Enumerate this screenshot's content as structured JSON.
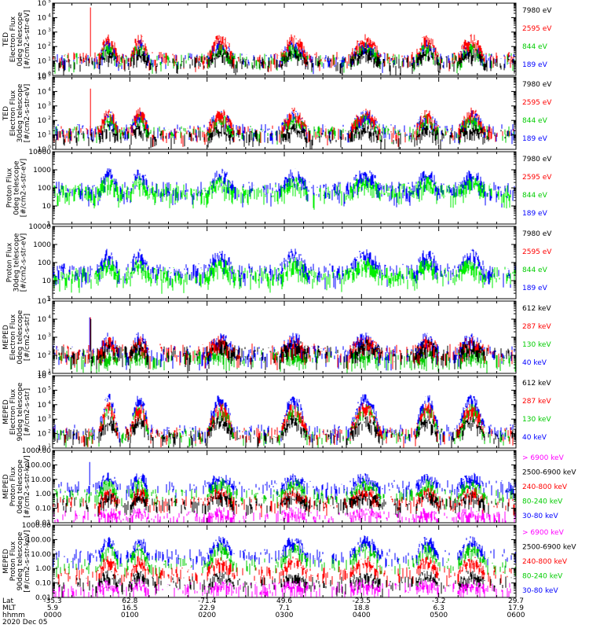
{
  "chart_data": {
    "type": "line",
    "date_label": "2020 Dec 05",
    "x_axis": {
      "rows": [
        {
          "label": "Lat",
          "values": [
            "-35.3",
            "62.8",
            "-71.4",
            "49.6",
            "-23.5",
            "-3.2",
            "29.7"
          ]
        },
        {
          "label": "MLT",
          "values": [
            "5.9",
            "16.5",
            "22.9",
            "7.1",
            "18.8",
            "6.3",
            "17.9"
          ]
        },
        {
          "label": "hhmm",
          "values": [
            "0000",
            "0100",
            "0200",
            "0300",
            "0400",
            "0500",
            "0600"
          ]
        }
      ],
      "hours_range": [
        0,
        6
      ]
    },
    "panels": [
      {
        "id": "ted-electron-0deg",
        "ylabel_lines": [
          "TED",
          "Electron Flux",
          "0deg telescope",
          "[#/cm2-s-str-eV]"
        ],
        "y_log_range": [
          0,
          5
        ],
        "yticks": [
          {
            "exp": 0,
            "label": "10",
            "sup": "0"
          },
          {
            "exp": 1,
            "label": "10",
            "sup": "1"
          },
          {
            "exp": 2,
            "label": "10",
            "sup": "2"
          },
          {
            "exp": 3,
            "label": "10",
            "sup": "3"
          },
          {
            "exp": 4,
            "label": "10",
            "sup": "4"
          },
          {
            "exp": 5,
            "label": "10",
            "sup": "5"
          }
        ],
        "legend": [
          {
            "text": "7980 eV",
            "color": "#000000"
          },
          {
            "text": "2595 eV",
            "color": "#ff0000"
          },
          {
            "text": "844 eV",
            "color": "#00cc00"
          },
          {
            "text": "189 eV",
            "color": "#0000ff"
          }
        ],
        "series": [
          {
            "name": "189 eV",
            "color": "#0000ff",
            "base": 1.2,
            "peak": 2.2,
            "spike": null
          },
          {
            "name": "844 eV",
            "color": "#00cc00",
            "base": 1.2,
            "peak": 2.0,
            "spike": null
          },
          {
            "name": "2595 eV",
            "color": "#ff0000",
            "base": 1.3,
            "peak": 2.6,
            "spike": 4.7
          },
          {
            "name": "7980 eV",
            "color": "#000000",
            "base": 1.0,
            "peak": 1.6,
            "spike": null
          }
        ]
      },
      {
        "id": "ted-electron-30deg",
        "ylabel_lines": [
          "TED",
          "Electron Flux",
          "30deg telescope",
          "[#/cm2-s-str-eV]"
        ],
        "y_log_range": [
          0,
          5
        ],
        "yticks": [
          {
            "exp": 0,
            "label": "10",
            "sup": "0"
          },
          {
            "exp": 1,
            "label": "10",
            "sup": "1"
          },
          {
            "exp": 2,
            "label": "10",
            "sup": "2"
          },
          {
            "exp": 3,
            "label": "10",
            "sup": "3"
          },
          {
            "exp": 4,
            "label": "10",
            "sup": "4"
          },
          {
            "exp": 5,
            "label": "10",
            "sup": "5"
          }
        ],
        "legend": [
          {
            "text": "7980 eV",
            "color": "#000000"
          },
          {
            "text": "2595 eV",
            "color": "#ff0000"
          },
          {
            "text": "844 eV",
            "color": "#00cc00"
          },
          {
            "text": "189 eV",
            "color": "#0000ff"
          }
        ],
        "series": [
          {
            "name": "189 eV",
            "color": "#0000ff",
            "base": 1.4,
            "peak": 2.4,
            "spike": null
          },
          {
            "name": "844 eV",
            "color": "#00cc00",
            "base": 1.3,
            "peak": 2.2,
            "spike": null
          },
          {
            "name": "2595 eV",
            "color": "#ff0000",
            "base": 1.3,
            "peak": 2.6,
            "spike": 4.2
          },
          {
            "name": "7980 eV",
            "color": "#000000",
            "base": 1.0,
            "peak": 1.5,
            "spike": null
          }
        ]
      },
      {
        "id": "proton-0deg",
        "ylabel_lines": [
          "Proton Flux",
          "0deg telescope",
          "[#/cm2-s-str-eV]"
        ],
        "y_log_range": [
          0,
          4
        ],
        "yticks": [
          {
            "exp": 0,
            "label": "1",
            "sup": ""
          },
          {
            "exp": 1,
            "label": "10",
            "sup": ""
          },
          {
            "exp": 2,
            "label": "100",
            "sup": ""
          },
          {
            "exp": 3,
            "label": "1000",
            "sup": ""
          },
          {
            "exp": 4,
            "label": "10000",
            "sup": ""
          }
        ],
        "legend": [
          {
            "text": "7980 eV",
            "color": "#000000"
          },
          {
            "text": "2595 eV",
            "color": "#ff0000"
          },
          {
            "text": "844 eV",
            "color": "#00cc00"
          },
          {
            "text": "189 eV",
            "color": "#0000ff"
          }
        ],
        "series": [
          {
            "name": "189 eV",
            "color": "#0000ff",
            "base": 2.0,
            "peak": 2.8,
            "spike": null
          },
          {
            "name": "844 eV",
            "color": "#00ee00",
            "base": 1.9,
            "peak": 2.4,
            "spike": null
          }
        ]
      },
      {
        "id": "proton-30deg",
        "ylabel_lines": [
          "Proton Flux",
          "30deg telescope",
          "[#/cm2-s-str-eV]"
        ],
        "y_log_range": [
          0,
          4
        ],
        "yticks": [
          {
            "exp": 0,
            "label": "1",
            "sup": ""
          },
          {
            "exp": 1,
            "label": "10",
            "sup": ""
          },
          {
            "exp": 2,
            "label": "100",
            "sup": ""
          },
          {
            "exp": 3,
            "label": "1000",
            "sup": ""
          },
          {
            "exp": 4,
            "label": "10000",
            "sup": ""
          }
        ],
        "legend": [
          {
            "text": "7980 eV",
            "color": "#000000"
          },
          {
            "text": "2595 eV",
            "color": "#ff0000"
          },
          {
            "text": "844 eV",
            "color": "#00cc00"
          },
          {
            "text": "189 eV",
            "color": "#0000ff"
          }
        ],
        "series": [
          {
            "name": "189 eV",
            "color": "#0000ff",
            "base": 1.6,
            "peak": 2.5,
            "spike": null
          },
          {
            "name": "844 eV",
            "color": "#00ee00",
            "base": 1.4,
            "peak": 2.0,
            "spike": null
          }
        ]
      },
      {
        "id": "meped-electron-0deg",
        "ylabel_lines": [
          "MEPED",
          "Electron Flux",
          "0deg telescope",
          "[#/cm2-s-str]"
        ],
        "y_log_range": [
          1,
          5
        ],
        "yticks": [
          {
            "exp": 1,
            "label": "10",
            "sup": "1"
          },
          {
            "exp": 2,
            "label": "10",
            "sup": "2"
          },
          {
            "exp": 3,
            "label": "10",
            "sup": "3"
          },
          {
            "exp": 4,
            "label": "10",
            "sup": "4"
          },
          {
            "exp": 5,
            "label": "10",
            "sup": "5"
          }
        ],
        "legend": [
          {
            "text": "612 keV",
            "color": "#000000"
          },
          {
            "text": "287 keV",
            "color": "#ff0000"
          },
          {
            "text": "130 keV",
            "color": "#00cc00"
          },
          {
            "text": "40 keV",
            "color": "#0000ff"
          }
        ],
        "series": [
          {
            "name": "40 keV",
            "color": "#0000ff",
            "base": 2.2,
            "peak": 3.0,
            "spike": 4.1
          },
          {
            "name": "130 keV",
            "color": "#00cc00",
            "base": 2.0,
            "peak": 2.1,
            "spike": null
          },
          {
            "name": "287 keV",
            "color": "#ff0000",
            "base": 2.3,
            "peak": 2.8,
            "spike": 4.1
          },
          {
            "name": "612 keV",
            "color": "#000000",
            "base": 2.2,
            "peak": 2.6,
            "spike": 4.0
          }
        ]
      },
      {
        "id": "meped-electron-90deg",
        "ylabel_lines": [
          "MEPED",
          "Electron Flux",
          "90deg telescope",
          "[#/cm2-s-str]"
        ],
        "y_log_range": [
          1,
          6
        ],
        "yticks": [
          {
            "exp": 1,
            "label": "10",
            "sup": "1"
          },
          {
            "exp": 2,
            "label": "10",
            "sup": "2"
          },
          {
            "exp": 3,
            "label": "10",
            "sup": "3"
          },
          {
            "exp": 4,
            "label": "10",
            "sup": "4"
          },
          {
            "exp": 5,
            "label": "10",
            "sup": "5"
          },
          {
            "exp": 6,
            "label": "10",
            "sup": "6"
          }
        ],
        "legend": [
          {
            "text": "612 keV",
            "color": "#000000"
          },
          {
            "text": "287 keV",
            "color": "#ff0000"
          },
          {
            "text": "130 keV",
            "color": "#00cc00"
          },
          {
            "text": "40 keV",
            "color": "#0000ff"
          }
        ],
        "series": [
          {
            "name": "40 keV",
            "color": "#0000ff",
            "base": 2.3,
            "peak": 4.5,
            "spike": null
          },
          {
            "name": "130 keV",
            "color": "#00cc00",
            "base": 2.0,
            "peak": 3.8,
            "spike": null
          },
          {
            "name": "287 keV",
            "color": "#ff0000",
            "base": 2.1,
            "peak": 3.9,
            "spike": null
          },
          {
            "name": "612 keV",
            "color": "#000000",
            "base": 2.0,
            "peak": 3.0,
            "spike": null
          }
        ]
      },
      {
        "id": "meped-proton-0deg",
        "ylabel_lines": [
          "MEPED",
          "Proton Flux",
          "0deg telescope",
          "[#/cm2-s-str-keV]"
        ],
        "y_log_range": [
          -2,
          3
        ],
        "yticks": [
          {
            "exp": -2,
            "label": "0.01",
            "sup": ""
          },
          {
            "exp": -1,
            "label": "0.10",
            "sup": ""
          },
          {
            "exp": 0,
            "label": "1.00",
            "sup": ""
          },
          {
            "exp": 1,
            "label": "10.00",
            "sup": ""
          },
          {
            "exp": 2,
            "label": "100.00",
            "sup": ""
          },
          {
            "exp": 3,
            "label": "1000.00",
            "sup": ""
          }
        ],
        "legend": [
          {
            "text": "> 6900 keV",
            "color": "#ff00ff"
          },
          {
            "text": "2500-6900 keV",
            "color": "#000000"
          },
          {
            "text": "240-800 keV",
            "color": "#ff0000"
          },
          {
            "text": "80-240 keV",
            "color": "#00cc00"
          },
          {
            "text": "30-80 keV",
            "color": "#0000ff"
          }
        ],
        "series": [
          {
            "name": "30-80 keV",
            "color": "#0000ff",
            "base": 0.6,
            "peak": 1.2,
            "spike": 2.2
          },
          {
            "name": "80-240 keV",
            "color": "#00cc00",
            "base": 0.0,
            "peak": 0.8,
            "spike": null
          },
          {
            "name": "240-800 keV",
            "color": "#ff0000",
            "base": -0.5,
            "peak": 0.2,
            "spike": null
          },
          {
            "name": "2500-6900 keV",
            "color": "#000000",
            "base": -0.6,
            "peak": -0.1,
            "spike": null
          },
          {
            "name": "> 6900 keV",
            "color": "#ff00ff",
            "base": -1.5,
            "peak": -1.2,
            "spike": null
          }
        ]
      },
      {
        "id": "meped-proton-90deg",
        "ylabel_lines": [
          "MEPED",
          "Proton Flux",
          "90deg telescope",
          "[#/cm2-s-str-keV]"
        ],
        "y_log_range": [
          -2,
          3
        ],
        "yticks": [
          {
            "exp": -2,
            "label": "0.01",
            "sup": ""
          },
          {
            "exp": -1,
            "label": "0.10",
            "sup": ""
          },
          {
            "exp": 0,
            "label": "1.00",
            "sup": ""
          },
          {
            "exp": 1,
            "label": "10.00",
            "sup": ""
          },
          {
            "exp": 2,
            "label": "100.00",
            "sup": ""
          },
          {
            "exp": 3,
            "label": "1000.00",
            "sup": ""
          }
        ],
        "legend": [
          {
            "text": "> 6900 keV",
            "color": "#ff00ff"
          },
          {
            "text": "2500-6900 keV",
            "color": "#000000"
          },
          {
            "text": "240-800 keV",
            "color": "#ff0000"
          },
          {
            "text": "80-240 keV",
            "color": "#00cc00"
          },
          {
            "text": "30-80 keV",
            "color": "#0000ff"
          }
        ],
        "series": [
          {
            "name": "30-80 keV",
            "color": "#0000ff",
            "base": 1.0,
            "peak": 2.0,
            "spike": null
          },
          {
            "name": "80-240 keV",
            "color": "#00cc00",
            "base": 0.4,
            "peak": 1.5,
            "spike": null
          },
          {
            "name": "240-800 keV",
            "color": "#ff0000",
            "base": -0.2,
            "peak": 0.6,
            "spike": null
          },
          {
            "name": "2500-6900 keV",
            "color": "#000000",
            "base": -0.9,
            "peak": -0.4,
            "spike": null
          },
          {
            "name": "> 6900 keV",
            "color": "#ff00ff",
            "base": -1.3,
            "peak": -1.0,
            "spike": null
          }
        ]
      }
    ],
    "activity_windows_hours": [
      [
        0.6,
        0.85
      ],
      [
        1.0,
        1.25
      ],
      [
        2.0,
        2.35
      ],
      [
        2.95,
        3.3
      ],
      [
        3.85,
        4.25
      ],
      [
        4.7,
        5.0
      ],
      [
        5.25,
        5.6
      ]
    ]
  }
}
